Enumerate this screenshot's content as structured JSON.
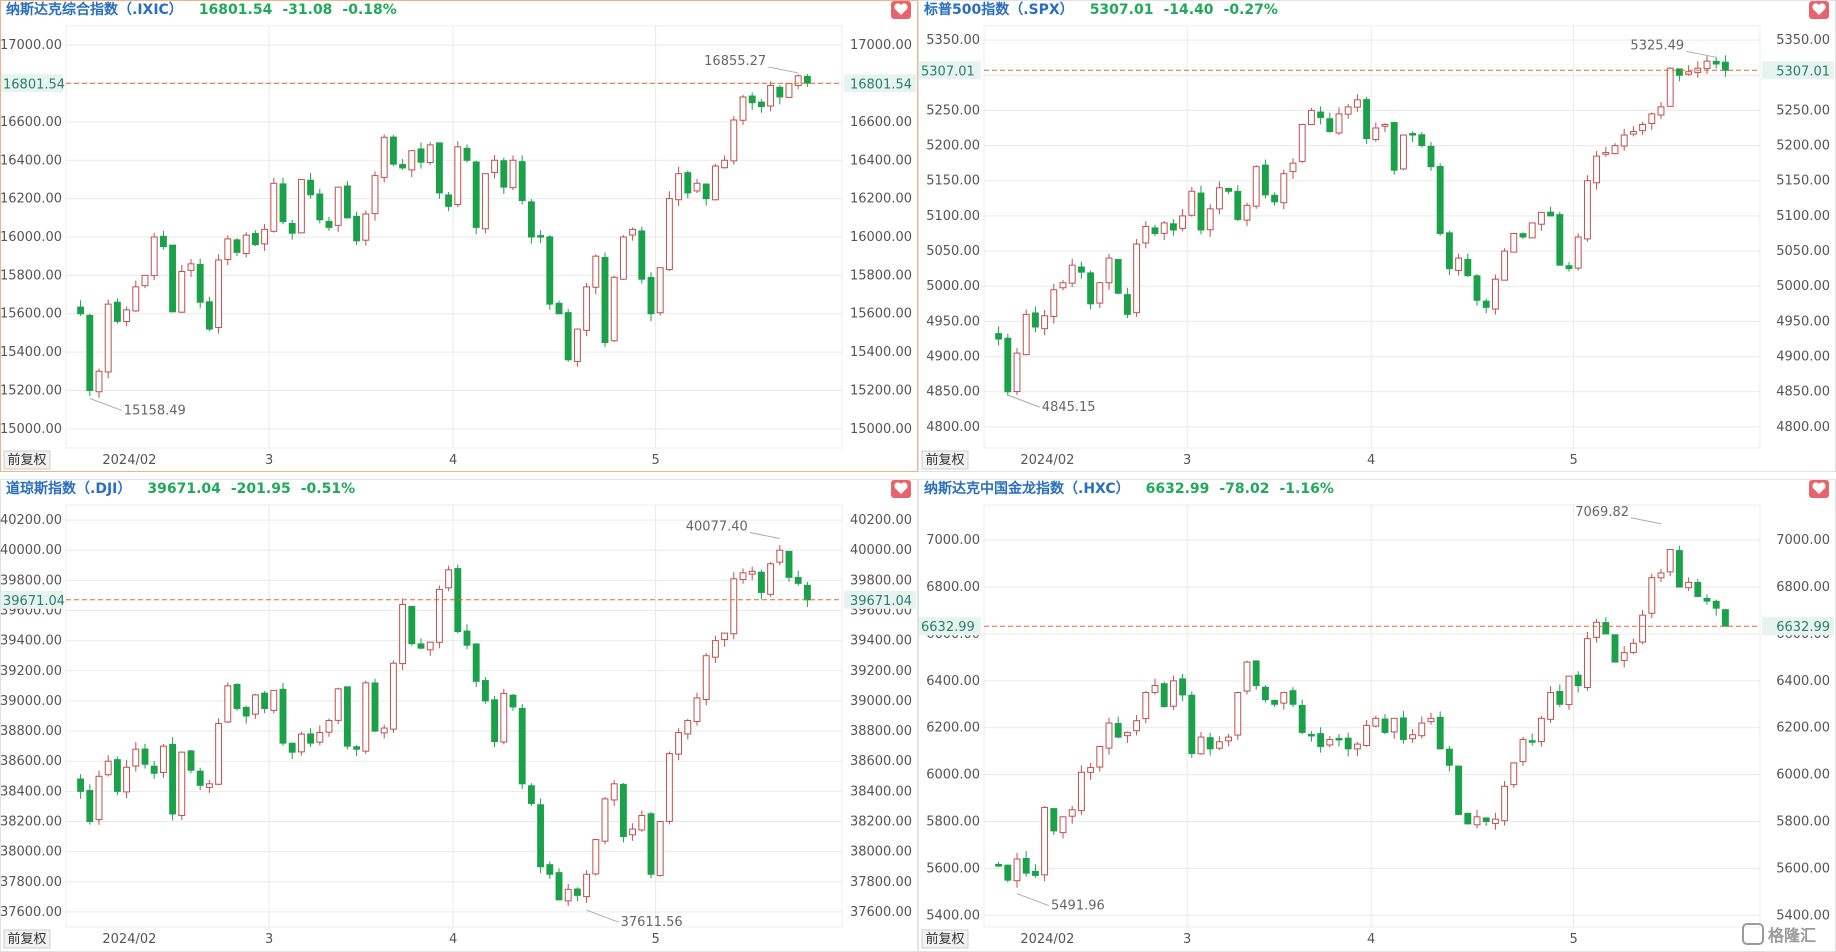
{
  "app": {
    "watermark": "格隆汇",
    "colors": {
      "up": "#c0504d",
      "down": "#1aa14a",
      "upFill": "#ffffff",
      "grid": "#e9e9e9",
      "current": "#e06a2a",
      "title": "#2a6fbf",
      "change": "#1faa59"
    },
    "icons": {
      "fav": "heart-icon",
      "watermark": "gelonghui-logo-icon"
    }
  },
  "panels": [
    {
      "name": "纳斯达克综合指数（.IXIC）",
      "price": "16801.54",
      "change": "-31.08",
      "pct": "-0.18%",
      "adjust_label": "前复权",
      "yTicks": [
        "17000.00",
        "16800.00",
        "16600.00",
        "16400.00",
        "16200.00",
        "16000.00",
        "15800.00",
        "15600.00",
        "15400.00",
        "15200.00",
        "15000.00"
      ],
      "xTicks": [
        "2024/02",
        "3",
        "4",
        "5"
      ],
      "current_label": "16801.54",
      "high_label": "16855.27",
      "low_label": "15158.49"
    },
    {
      "name": "标普500指数（.SPX）",
      "price": "5307.01",
      "change": "-14.40",
      "pct": "-0.27%",
      "adjust_label": "前复权",
      "yTicks": [
        "5350.00",
        "5300.00",
        "5250.00",
        "5200.00",
        "5150.00",
        "5100.00",
        "5050.00",
        "5000.00",
        "4950.00",
        "4900.00",
        "4850.00",
        "4800.00"
      ],
      "xTicks": [
        "2024/02",
        "3",
        "4",
        "5"
      ],
      "current_label": "5307.01",
      "high_label": "5325.49",
      "low_label": "4845.15"
    },
    {
      "name": "道琼斯指数（.DJI）",
      "price": "39671.04",
      "change": "-201.95",
      "pct": "-0.51%",
      "adjust_label": "前复权",
      "yTicks": [
        "40200.00",
        "40000.00",
        "39800.00",
        "39600.00",
        "39400.00",
        "39200.00",
        "39000.00",
        "38800.00",
        "38600.00",
        "38400.00",
        "38200.00",
        "38000.00",
        "37800.00",
        "37600.00"
      ],
      "xTicks": [
        "2024/02",
        "3",
        "4",
        "5"
      ],
      "current_label": "39671.04",
      "high_label": "40077.40",
      "low_label": "37611.56"
    },
    {
      "name": "纳斯达克中国金龙指数（.HXC）",
      "price": "6632.99",
      "change": "-78.02",
      "pct": "-1.16%",
      "adjust_label": "前复权",
      "yTicks": [
        "7000.00",
        "6800.00",
        "6600.00",
        "6400.00",
        "6200.00",
        "6000.00",
        "5800.00",
        "5600.00",
        "5400.00"
      ],
      "xTicks": [
        "2024/02",
        "3",
        "4",
        "5"
      ],
      "current_label": "6632.99",
      "high_label": "7069.82",
      "low_label": "5491.96"
    }
  ],
  "chart_data": [
    {
      "type": "candlestick",
      "title": "纳斯达克综合指数（.IXIC）",
      "ylim": [
        14900,
        17100
      ],
      "yticks": [
        17000,
        16800,
        16600,
        16400,
        16200,
        16000,
        15800,
        15600,
        15400,
        15200,
        15000
      ],
      "current": 16801.54,
      "high": {
        "value": 16855.27,
        "index": 78
      },
      "low": {
        "value": 15158.49,
        "index": 1
      },
      "month_starts": [
        {
          "label": "2024/02",
          "index": 2
        },
        {
          "label": "3",
          "index": 21
        },
        {
          "label": "4",
          "index": 41
        },
        {
          "label": "5",
          "index": 63
        }
      ],
      "closes": [
        15600,
        15200,
        15300,
        15650,
        15560,
        15620,
        15740,
        15800,
        16000,
        15950,
        15610,
        15820,
        15860,
        15660,
        15520,
        15880,
        15990,
        15920,
        16010,
        15960,
        16040,
        16280,
        16080,
        16020,
        16300,
        16220,
        16090,
        16050,
        16260,
        16100,
        15980,
        16120,
        16320,
        16520,
        16380,
        16360,
        16450,
        16390,
        16480,
        16230,
        16160,
        16470,
        16400,
        16050,
        16330,
        16400,
        16260,
        16400,
        16190,
        16000,
        16000,
        15650,
        15600,
        15360,
        15520,
        15740,
        15900,
        15450,
        15790,
        16000,
        16040,
        15780,
        15600,
        15840,
        16200,
        16330,
        16230,
        16280,
        16200,
        16370,
        16400,
        16610,
        16730,
        16700,
        16680,
        16790,
        16730,
        16800,
        16840,
        16802
      ]
    },
    {
      "type": "candlestick",
      "title": "标普500指数（.SPX）",
      "ylim": [
        4770,
        5370
      ],
      "yticks": [
        5350,
        5300,
        5250,
        5200,
        5150,
        5100,
        5050,
        5000,
        4950,
        4900,
        4850,
        4800
      ],
      "current": 5307.01,
      "high": {
        "value": 5325.49,
        "index": 78
      },
      "low": {
        "value": 4845.15,
        "index": 1
      },
      "month_starts": [
        {
          "label": "2024/02",
          "index": 2
        },
        {
          "label": "3",
          "index": 21
        },
        {
          "label": "4",
          "index": 41
        },
        {
          "label": "5",
          "index": 63
        }
      ],
      "closes": [
        4925,
        4850,
        4905,
        4960,
        4942,
        4958,
        4995,
        5005,
        5030,
        5020,
        4975,
        5005,
        5040,
        4990,
        4960,
        5060,
        5085,
        5075,
        5090,
        5080,
        5100,
        5135,
        5080,
        5110,
        5140,
        5135,
        5095,
        5115,
        5170,
        5130,
        5120,
        5160,
        5175,
        5230,
        5250,
        5240,
        5220,
        5245,
        5255,
        5265,
        5210,
        5225,
        5230,
        5165,
        5215,
        5215,
        5200,
        5170,
        5075,
        5025,
        5040,
        5015,
        4980,
        4970,
        5010,
        5050,
        5075,
        5070,
        5090,
        5105,
        5100,
        5030,
        5025,
        5070,
        5150,
        5185,
        5190,
        5200,
        5215,
        5220,
        5230,
        5245,
        5255,
        5310,
        5300,
        5305,
        5310,
        5320,
        5316,
        5307
      ]
    },
    {
      "type": "candlestick",
      "title": "道琼斯指数（.DJI）",
      "ylim": [
        37500,
        40300
      ],
      "yticks": [
        40200,
        40000,
        39800,
        39600,
        39400,
        39200,
        39000,
        38800,
        38600,
        38400,
        38200,
        38000,
        37800,
        37600
      ],
      "current": 39671.04,
      "high": {
        "value": 40077.4,
        "index": 76
      },
      "low": {
        "value": 37611.56,
        "index": 55
      },
      "month_starts": [
        {
          "label": "2024/02",
          "index": 2
        },
        {
          "label": "3",
          "index": 21
        },
        {
          "label": "4",
          "index": 41
        },
        {
          "label": "5",
          "index": 63
        }
      ],
      "closes": [
        38400,
        38200,
        38500,
        38600,
        38400,
        38560,
        38680,
        38580,
        38520,
        38700,
        38250,
        38660,
        38540,
        38440,
        38450,
        38850,
        39100,
        38950,
        38900,
        39040,
        38950,
        39070,
        38720,
        38660,
        38780,
        38720,
        38790,
        38870,
        39080,
        38700,
        38680,
        39120,
        38800,
        38820,
        39250,
        39640,
        39380,
        39350,
        39390,
        39740,
        39870,
        39460,
        39370,
        39130,
        39000,
        38730,
        39050,
        38960,
        38450,
        38320,
        37900,
        37850,
        37680,
        37750,
        37710,
        37850,
        38080,
        38350,
        38450,
        38100,
        38150,
        38240,
        37850,
        38200,
        38650,
        38790,
        38870,
        39020,
        39300,
        39400,
        39450,
        39810,
        39850,
        39860,
        39720,
        39910,
        40000,
        39820,
        39780,
        39671
      ]
    },
    {
      "type": "candlestick",
      "title": "纳斯达克中国金龙指数（.HXC）",
      "ylim": [
        5350,
        7150
      ],
      "yticks": [
        7000,
        6800,
        6600,
        6400,
        6200,
        6000,
        5800,
        5600,
        5400
      ],
      "current": 6632.99,
      "high": {
        "value": 7069.82,
        "index": 72
      },
      "low": {
        "value": 5491.96,
        "index": 2
      },
      "month_starts": [
        {
          "label": "2024/02",
          "index": 2
        },
        {
          "label": "3",
          "index": 21
        },
        {
          "label": "4",
          "index": 41
        },
        {
          "label": "5",
          "index": 63
        }
      ],
      "closes": [
        5610,
        5550,
        5640,
        5580,
        5570,
        5860,
        5760,
        5820,
        5850,
        6010,
        6030,
        6120,
        6220,
        6160,
        6180,
        6230,
        6350,
        6380,
        6290,
        6400,
        6340,
        6090,
        6160,
        6110,
        6140,
        6160,
        6350,
        6480,
        6380,
        6320,
        6300,
        6350,
        6300,
        6180,
        6170,
        6120,
        6150,
        6150,
        6110,
        6130,
        6210,
        6240,
        6180,
        6240,
        6150,
        6170,
        6220,
        6240,
        6110,
        6040,
        5830,
        5790,
        5820,
        5800,
        5810,
        5950,
        6050,
        6150,
        6140,
        6240,
        6350,
        6300,
        6420,
        6380,
        6580,
        6650,
        6600,
        6480,
        6520,
        6560,
        6680,
        6840,
        6860,
        6960,
        6800,
        6820,
        6760,
        6740,
        6710,
        6633
      ]
    }
  ]
}
